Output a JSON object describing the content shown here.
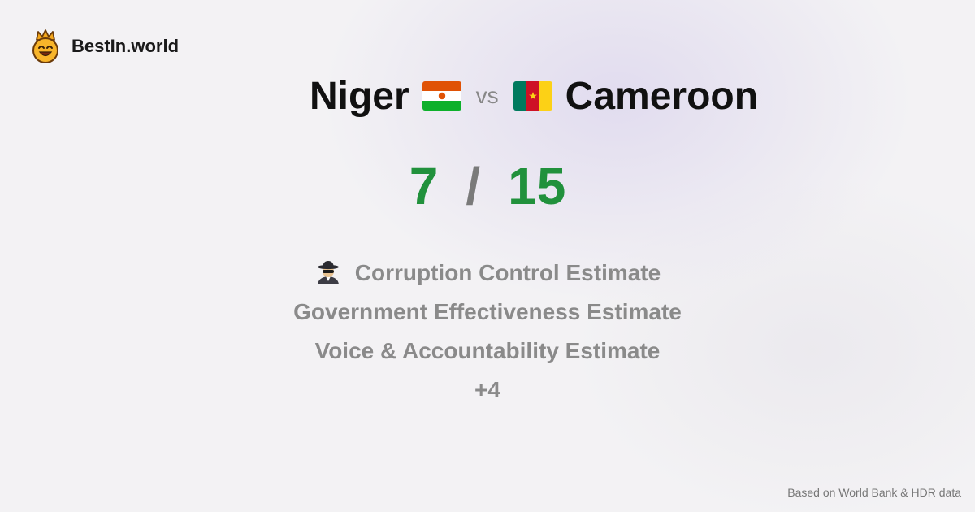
{
  "brand": {
    "name": "BestIn.world",
    "icon": "smiling-crown-icon"
  },
  "comparison": {
    "country_a": {
      "name": "Niger",
      "flag": "niger-flag-icon"
    },
    "vs_label": "vs",
    "country_b": {
      "name": "Cameroon",
      "flag": "cameroon-flag-icon"
    }
  },
  "score": {
    "a": "7",
    "separator": "/",
    "b": "15",
    "color": "#21913c"
  },
  "metrics": [
    {
      "label": "Corruption Control Estimate",
      "icon": "spy-icon"
    },
    {
      "label": "Government Effectiveness Estimate"
    },
    {
      "label": "Voice & Accountability Estimate"
    },
    {
      "label": "+4"
    }
  ],
  "footer": {
    "source": "Based on World Bank & HDR data"
  }
}
